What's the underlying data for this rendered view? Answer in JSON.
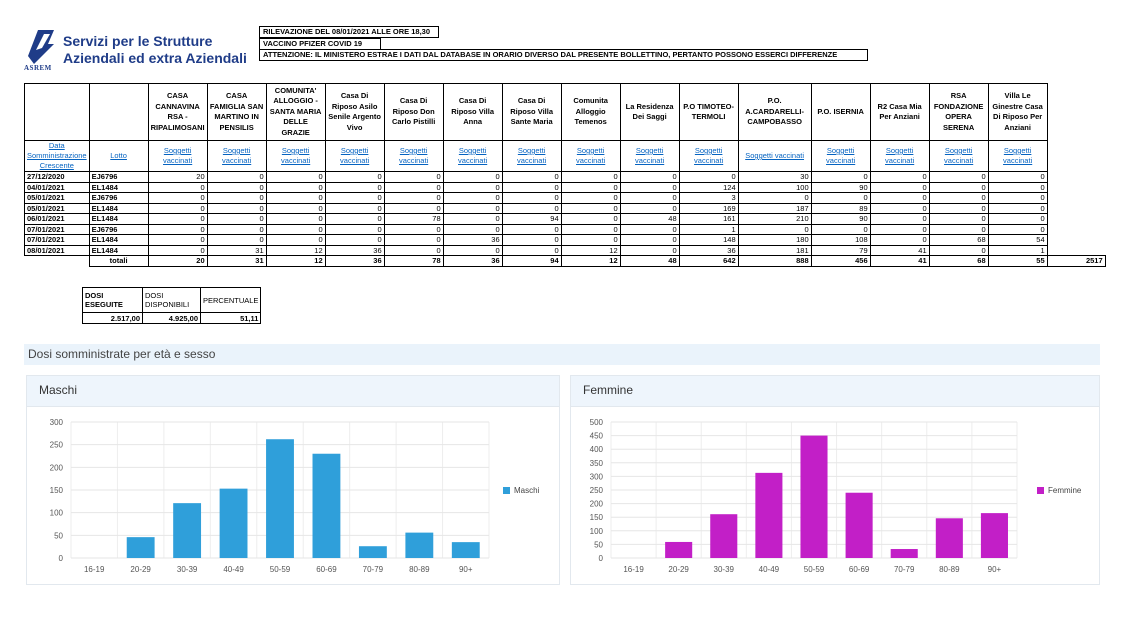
{
  "brand": {
    "line1": "Servizi per le Strutture",
    "line2": "Aziendali ed extra Aziendali",
    "logo_text": "ASREM",
    "logo_icon": "asrem-logo-icon"
  },
  "info": {
    "line1": "RILEVAZIONE DEL 08/01/2021 ALLE ORE 18,30",
    "line2": "VACCINO PFIZER COVID 19",
    "line3": "ATTENZIONE: IL MINISTERO ESTRAE I DATI DAL DATABASE IN ORARIO DIVERSO DAL PRESENTE BOLLETTINO, PERTANTO POSSONO ESSERCI DIFFERENZE"
  },
  "table": {
    "columns": [
      "CASA CANNAVINA RSA - RIPALIMOSANI",
      "CASA FAMIGLIA SAN MARTINO IN PENSILIS",
      "COMUNITA' ALLOGGIO - SANTA MARIA DELLE GRAZIE",
      "Casa Di Riposo Asilo Senile Argento Vivo",
      "Casa Di Riposo Don Carlo Pistilli",
      "Casa Di Riposo Villa Anna",
      "Casa Di Riposo Villa Sante Maria",
      "Comunita Alloggio Temenos",
      "La Residenza Dei Saggi",
      "P.O TIMOTEO-TERMOLI",
      "P.O. A.CARDARELLI-CAMPOBASSO",
      "P.O. ISERNIA",
      "R2 Casa Mia Per Anziani",
      "RSA FONDAZIONE OPERA SERENA",
      "Villa Le Ginestre Casa Di Riposo Per Anziani"
    ],
    "date_header": "Data Somministrazione Crescente",
    "lot_header": "Lotto",
    "sub_label": "Soggetti vaccinati",
    "rows": [
      {
        "date": "27/12/2020",
        "lot": "EJ6796",
        "values": [
          "20",
          "0",
          "0",
          "0",
          "0",
          "0",
          "0",
          "0",
          "0",
          "0",
          "30",
          "0",
          "0",
          "0",
          "0"
        ]
      },
      {
        "date": "04/01/2021",
        "lot": "EL1484",
        "values": [
          "0",
          "0",
          "0",
          "0",
          "0",
          "0",
          "0",
          "0",
          "0",
          "124",
          "100",
          "90",
          "0",
          "0",
          "0"
        ]
      },
      {
        "date": "05/01/2021",
        "lot": "EJ6796",
        "values": [
          "0",
          "0",
          "0",
          "0",
          "0",
          "0",
          "0",
          "0",
          "0",
          "3",
          "0",
          "0",
          "0",
          "0",
          "0"
        ]
      },
      {
        "date": "05/01/2021",
        "lot": "EL1484",
        "values": [
          "0",
          "0",
          "0",
          "0",
          "0",
          "0",
          "0",
          "0",
          "0",
          "169",
          "187",
          "89",
          "0",
          "0",
          "0"
        ]
      },
      {
        "date": "06/01/2021",
        "lot": "EL1484",
        "values": [
          "0",
          "0",
          "0",
          "0",
          "78",
          "0",
          "94",
          "0",
          "48",
          "161",
          "210",
          "90",
          "0",
          "0",
          "0"
        ]
      },
      {
        "date": "07/01/2021",
        "lot": "EJ6796",
        "values": [
          "0",
          "0",
          "0",
          "0",
          "0",
          "0",
          "0",
          "0",
          "0",
          "1",
          "0",
          "0",
          "0",
          "0",
          "0"
        ]
      },
      {
        "date": "07/01/2021",
        "lot": "EL1484",
        "values": [
          "0",
          "0",
          "0",
          "0",
          "0",
          "36",
          "0",
          "0",
          "0",
          "148",
          "180",
          "108",
          "0",
          "68",
          "54"
        ]
      },
      {
        "date": "08/01/2021",
        "lot": "EL1484",
        "values": [
          "0",
          "31",
          "12",
          "36",
          "0",
          "0",
          "0",
          "12",
          "0",
          "36",
          "181",
          "79",
          "41",
          "0",
          "1"
        ]
      }
    ],
    "totals_label": "totali",
    "totals": [
      "20",
      "31",
      "12",
      "36",
      "78",
      "36",
      "94",
      "12",
      "48",
      "642",
      "888",
      "456",
      "41",
      "68",
      "55"
    ],
    "grand_total": "2517"
  },
  "doses": {
    "h1": "DOSI ESEGUITE",
    "h2": "DOSI DISPONIBILI",
    "h3": "PERCENTUALE",
    "v1": "2.517,00",
    "v2": "4.925,00",
    "v3": "51,11"
  },
  "section_title": "Dosi somministrate per età e sesso",
  "chart_data": [
    {
      "type": "bar",
      "title": "Maschi",
      "categories": [
        "16-19",
        "20-29",
        "30-39",
        "40-49",
        "50-59",
        "60-69",
        "70-79",
        "80-89",
        "90+"
      ],
      "series": [
        {
          "name": "Maschi",
          "values": [
            0,
            46,
            121,
            153,
            262,
            230,
            26,
            56,
            35
          ]
        }
      ],
      "ylim": [
        0,
        300
      ],
      "yticks": [
        0,
        50,
        100,
        150,
        200,
        250,
        300
      ],
      "grid": true,
      "legend": "right",
      "color": "#2f9fda"
    },
    {
      "type": "bar",
      "title": "Femmine",
      "categories": [
        "16-19",
        "20-29",
        "30-39",
        "40-49",
        "50-59",
        "60-69",
        "70-79",
        "80-89",
        "90+"
      ],
      "series": [
        {
          "name": "Femmine",
          "values": [
            0,
            59,
            161,
            313,
            450,
            240,
            33,
            146,
            165
          ]
        }
      ],
      "ylim": [
        0,
        500
      ],
      "yticks": [
        0,
        50,
        100,
        150,
        200,
        250,
        300,
        350,
        400,
        450,
        500
      ],
      "grid": true,
      "legend": "right",
      "color": "#c21fc7"
    }
  ]
}
